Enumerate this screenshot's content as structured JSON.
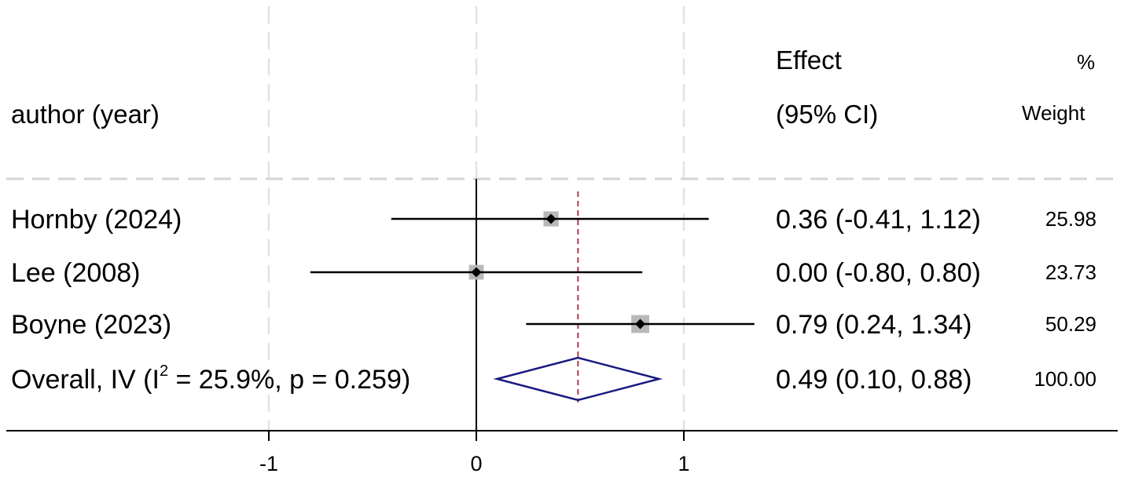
{
  "chart_data": {
    "type": "forest",
    "title": "",
    "xlabel": "",
    "ylabel": "",
    "xlim": [
      -1.27,
      4.1
    ],
    "x_ticks": [
      -1,
      0,
      1
    ],
    "x_tick_labels": [
      "-1",
      "0",
      "1"
    ],
    "grid": "dashed vertical gridlines at -1, 0, 1; dashed horizontal separator under header",
    "null_line": 0,
    "overall_line": 0.49,
    "columns": {
      "study": "author (year)",
      "effect_line1": "Effect",
      "effect_line2": "(95% CI)",
      "weight_line1": "%",
      "weight_line2": "Weight"
    },
    "studies": [
      {
        "label": "Hornby (2024)",
        "effect": 0.36,
        "ci_low": -0.41,
        "ci_high": 1.12,
        "weight": 25.98,
        "effect_text": "0.36 (-0.41, 1.12)",
        "weight_text": "25.98"
      },
      {
        "label": "Lee (2008)",
        "effect": 0.0,
        "ci_low": -0.8,
        "ci_high": 0.8,
        "weight": 23.73,
        "effect_text": "0.00 (-0.80, 0.80)",
        "weight_text": "23.73"
      },
      {
        "label": "Boyne (2023)",
        "effect": 0.79,
        "ci_low": 0.24,
        "ci_high": 1.34,
        "weight": 50.29,
        "effect_text": "0.79 (0.24, 1.34)",
        "weight_text": "50.29"
      }
    ],
    "overall": {
      "label_prefix": "Overall, IV (I",
      "label_sup": "2",
      "label_suffix": " = 25.9%, p = 0.259)",
      "method": "IV",
      "i_squared": "25.9%",
      "p_value": 0.259,
      "effect": 0.49,
      "ci_low": 0.1,
      "ci_high": 0.88,
      "weight": 100.0,
      "effect_text": "0.49 (0.10, 0.88)",
      "weight_text": "100.00"
    },
    "colors": {
      "ci_line": "#000000",
      "weight_box": "#b8b8b8",
      "point": "#000000",
      "diamond": "#1a1a80",
      "overall_line": "#b03a4a",
      "grid": "#e2e2e2",
      "axis": "#000000"
    }
  }
}
